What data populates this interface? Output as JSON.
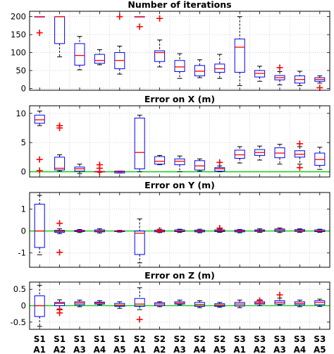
{
  "chart_data": [
    {
      "type": "box",
      "title": "Number of iterations",
      "ylim": [
        -5,
        215
      ],
      "yticks": [
        0,
        50,
        100,
        150,
        200
      ],
      "ytick_labels": [
        "0",
        "50",
        "100",
        "150",
        "200"
      ],
      "reference_line": null,
      "boxes": [
        {
          "low": 200,
          "q1": 200,
          "median": 200,
          "q3": 200,
          "high": 200,
          "outliers": [
            155
          ]
        },
        {
          "low": 88,
          "q1": 125,
          "median": 200,
          "q3": 200,
          "high": 200,
          "outliers": []
        },
        {
          "low": 52,
          "q1": 65,
          "median": 92,
          "q3": 125,
          "high": 145,
          "outliers": []
        },
        {
          "low": 66,
          "q1": 70,
          "median": 78,
          "q3": 95,
          "high": 108,
          "outliers": []
        },
        {
          "low": 40,
          "q1": 55,
          "median": 78,
          "q3": 100,
          "high": 118,
          "outliers": [
            200
          ]
        },
        {
          "low": 200,
          "q1": 200,
          "median": 200,
          "q3": 200,
          "high": 200,
          "outliers": [
            172
          ]
        },
        {
          "low": 60,
          "q1": 75,
          "median": 100,
          "q3": 105,
          "high": 135,
          "outliers": [
            195
          ]
        },
        {
          "low": 28,
          "q1": 47,
          "median": 60,
          "q3": 78,
          "high": 97,
          "outliers": []
        },
        {
          "low": 30,
          "q1": 35,
          "median": 48,
          "q3": 64,
          "high": 80,
          "outliers": []
        },
        {
          "low": 28,
          "q1": 45,
          "median": 55,
          "q3": 68,
          "high": 95,
          "outliers": []
        },
        {
          "low": 8,
          "q1": 45,
          "median": 115,
          "q3": 138,
          "high": 200,
          "outliers": []
        },
        {
          "low": 20,
          "q1": 32,
          "median": 42,
          "q3": 50,
          "high": 62,
          "outliers": []
        },
        {
          "low": 10,
          "q1": 24,
          "median": 30,
          "q3": 36,
          "high": 47,
          "outliers": [
            58
          ]
        },
        {
          "low": 8,
          "q1": 15,
          "median": 25,
          "q3": 35,
          "high": 48,
          "outliers": []
        },
        {
          "low": 15,
          "q1": 20,
          "median": 25,
          "q3": 30,
          "high": 35,
          "outliers": [
            2
          ]
        }
      ]
    },
    {
      "type": "box",
      "title": "Error on X (m)",
      "ylim": [
        -0.9,
        11.3
      ],
      "yticks": [
        0,
        5,
        10
      ],
      "ytick_labels": [
        "0",
        "5",
        "10"
      ],
      "reference_line": 0,
      "boxes": [
        {
          "low": 7.9,
          "q1": 8.3,
          "median": 8.9,
          "q3": 9.7,
          "high": 10.4,
          "outliers": [
            2.1,
            0.2
          ]
        },
        {
          "low": 0.1,
          "q1": 0.3,
          "median": 0.6,
          "q3": 2.5,
          "high": 2.9,
          "outliers": [
            7.9,
            7.5
          ]
        },
        {
          "low": -0.3,
          "q1": 0.1,
          "median": 0.5,
          "q3": 0.8,
          "high": 1.3,
          "outliers": []
        },
        {
          "low": -0.1,
          "q1": 0.0,
          "median": 0.0,
          "q3": 0.05,
          "high": 0.05,
          "outliers": [
            1.2,
            0.6,
            0.0
          ]
        },
        {
          "low": -0.2,
          "q1": -0.2,
          "median": 0.0,
          "q3": 0.1,
          "high": 0.1,
          "outliers": []
        },
        {
          "low": 0.0,
          "q1": 0.5,
          "median": 3.3,
          "q3": 9.2,
          "high": 9.7,
          "outliers": []
        },
        {
          "low": 1.2,
          "q1": 1.3,
          "median": 1.8,
          "q3": 2.6,
          "high": 2.8,
          "outliers": []
        },
        {
          "low": 0.0,
          "q1": 1.2,
          "median": 1.8,
          "q3": 2.2,
          "high": 2.7,
          "outliers": []
        },
        {
          "low": 0.1,
          "q1": 0.3,
          "median": 1.0,
          "q3": 1.9,
          "high": 2.2,
          "outliers": []
        },
        {
          "low": 0.0,
          "q1": 0.1,
          "median": 0.5,
          "q3": 0.7,
          "high": 1.0,
          "outliers": [
            1.6
          ]
        },
        {
          "low": 1.5,
          "q1": 2.3,
          "median": 2.9,
          "q3": 3.7,
          "high": 4.3,
          "outliers": []
        },
        {
          "low": 2.0,
          "q1": 2.8,
          "median": 3.3,
          "q3": 3.8,
          "high": 4.4,
          "outliers": []
        },
        {
          "low": 1.3,
          "q1": 2.4,
          "median": 3.2,
          "q3": 4.1,
          "high": 4.7,
          "outliers": []
        },
        {
          "low": 1.3,
          "q1": 2.5,
          "median": 3.0,
          "q3": 3.6,
          "high": 4.3,
          "outliers": [
            4.8,
            0.7
          ]
        },
        {
          "low": 0.4,
          "q1": 1.1,
          "median": 2.1,
          "q3": 3.2,
          "high": 4.2,
          "outliers": []
        }
      ]
    },
    {
      "type": "box",
      "title": "Error on Y (m)",
      "ylim": [
        -1.65,
        1.75
      ],
      "yticks": [
        -1,
        0,
        1
      ],
      "ytick_labels": [
        "-1",
        "0",
        "1"
      ],
      "reference_line": 0,
      "boxes": [
        {
          "low": -1.08,
          "q1": -0.75,
          "median": 0.0,
          "q3": 1.22,
          "high": 1.62,
          "outliers": []
        },
        {
          "low": -0.12,
          "q1": -0.06,
          "median": -0.02,
          "q3": 0.03,
          "high": 0.1,
          "outliers": [
            0.35,
            -0.97
          ]
        },
        {
          "low": -0.07,
          "q1": -0.03,
          "median": 0.0,
          "q3": 0.03,
          "high": 0.07,
          "outliers": []
        },
        {
          "low": -0.09,
          "q1": -0.04,
          "median": 0.0,
          "q3": 0.05,
          "high": 0.1,
          "outliers": []
        },
        {
          "low": -0.05,
          "q1": -0.03,
          "median": 0.0,
          "q3": 0.01,
          "high": 0.03,
          "outliers": []
        },
        {
          "low": -1.45,
          "q1": -1.07,
          "median": -0.1,
          "q3": 0.0,
          "high": 0.55,
          "outliers": []
        },
        {
          "low": -0.07,
          "q1": -0.04,
          "median": 0.0,
          "q3": 0.04,
          "high": 0.08,
          "outliers": [
            0.03
          ]
        },
        {
          "low": -0.07,
          "q1": -0.03,
          "median": 0.0,
          "q3": 0.05,
          "high": 0.08,
          "outliers": []
        },
        {
          "low": -0.08,
          "q1": -0.04,
          "median": 0.0,
          "q3": 0.04,
          "high": 0.08,
          "outliers": []
        },
        {
          "low": -0.06,
          "q1": -0.03,
          "median": 0.02,
          "q3": 0.05,
          "high": 0.09,
          "outliers": [
            0.13
          ]
        },
        {
          "low": -0.08,
          "q1": -0.04,
          "median": 0.0,
          "q3": 0.04,
          "high": 0.07,
          "outliers": []
        },
        {
          "low": -0.06,
          "q1": -0.02,
          "median": 0.02,
          "q3": 0.05,
          "high": 0.1,
          "outliers": []
        },
        {
          "low": -0.07,
          "q1": -0.02,
          "median": 0.05,
          "q3": 0.09,
          "high": 0.14,
          "outliers": []
        },
        {
          "low": -0.06,
          "q1": -0.02,
          "median": 0.02,
          "q3": 0.06,
          "high": 0.1,
          "outliers": []
        },
        {
          "low": -0.06,
          "q1": -0.03,
          "median": 0.0,
          "q3": 0.05,
          "high": 0.08,
          "outliers": []
        }
      ]
    },
    {
      "type": "box",
      "title": "Error on Z (m)",
      "ylim": [
        -0.72,
        0.72
      ],
      "yticks": [
        -0.5,
        0,
        0.5
      ],
      "ytick_labels": [
        "-0.5",
        "0",
        "0.5"
      ],
      "reference_line": 0,
      "boxes": [
        {
          "low": -0.63,
          "q1": -0.33,
          "median": 0.0,
          "q3": 0.3,
          "high": 0.62,
          "outliers": []
        },
        {
          "low": -0.1,
          "q1": 0.0,
          "median": 0.07,
          "q3": 0.1,
          "high": 0.18,
          "outliers": [
            -0.12,
            -0.22
          ]
        },
        {
          "low": -0.03,
          "q1": 0.03,
          "median": 0.08,
          "q3": 0.12,
          "high": 0.17,
          "outliers": []
        },
        {
          "low": 0.02,
          "q1": 0.05,
          "median": 0.08,
          "q3": 0.11,
          "high": 0.15,
          "outliers": []
        },
        {
          "low": -0.08,
          "q1": -0.02,
          "median": 0.02,
          "q3": 0.07,
          "high": 0.12,
          "outliers": []
        },
        {
          "low": -0.12,
          "q1": -0.02,
          "median": 0.05,
          "q3": 0.22,
          "high": 0.55,
          "outliers": [
            -0.42
          ]
        },
        {
          "low": -0.03,
          "q1": 0.0,
          "median": 0.05,
          "q3": 0.09,
          "high": 0.12,
          "outliers": []
        },
        {
          "low": 0.02,
          "q1": 0.05,
          "median": 0.08,
          "q3": 0.12,
          "high": 0.17,
          "outliers": []
        },
        {
          "low": -0.06,
          "q1": -0.02,
          "median": 0.04,
          "q3": 0.1,
          "high": 0.15,
          "outliers": []
        },
        {
          "low": -0.05,
          "q1": -0.02,
          "median": 0.02,
          "q3": 0.06,
          "high": 0.1,
          "outliers": []
        },
        {
          "low": -0.06,
          "q1": -0.01,
          "median": 0.05,
          "q3": 0.1,
          "high": 0.17,
          "outliers": []
        },
        {
          "low": 0.0,
          "q1": 0.05,
          "median": 0.08,
          "q3": 0.12,
          "high": 0.18,
          "outliers": [
            0.16
          ]
        },
        {
          "low": 0.02,
          "q1": 0.05,
          "median": 0.1,
          "q3": 0.15,
          "high": 0.23,
          "outliers": [
            0.33
          ]
        },
        {
          "low": -0.03,
          "q1": 0.03,
          "median": 0.07,
          "q3": 0.12,
          "high": 0.17,
          "outliers": []
        },
        {
          "low": -0.02,
          "q1": 0.03,
          "median": 0.1,
          "q3": 0.15,
          "high": 0.2,
          "outliers": []
        }
      ]
    }
  ],
  "x_categories": [
    [
      "S1",
      "A1"
    ],
    [
      "S1",
      "A2"
    ],
    [
      "S1",
      "A3"
    ],
    [
      "S1",
      "A4"
    ],
    [
      "S1",
      "A5"
    ],
    [
      "S2",
      "A1"
    ],
    [
      "S2",
      "A2"
    ],
    [
      "S2",
      "A3"
    ],
    [
      "S2",
      "A4"
    ],
    [
      "S2",
      "A5"
    ],
    [
      "S3",
      "A1"
    ],
    [
      "S3",
      "A2"
    ],
    [
      "S3",
      "A3"
    ],
    [
      "S3",
      "A4"
    ],
    [
      "S3",
      "A5"
    ]
  ],
  "colors": {
    "box": "#0000ff",
    "median": "#ff0000",
    "outlier": "#ff0000",
    "whisker": "#000000",
    "reference_line": "#00cc00",
    "grid": "#c8c8c8"
  }
}
